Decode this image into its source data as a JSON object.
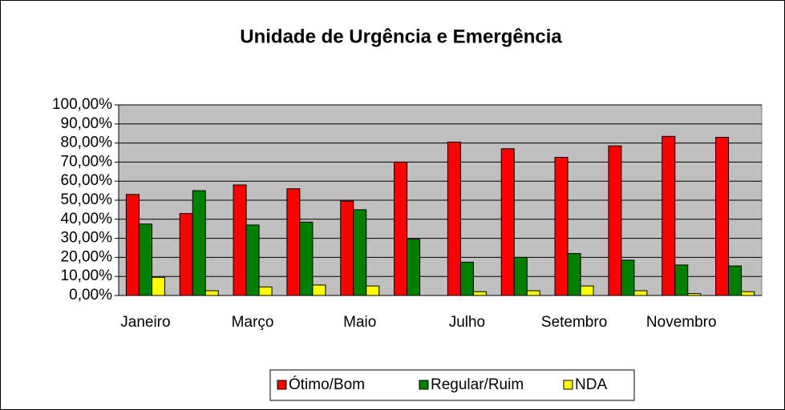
{
  "chart_data": {
    "type": "bar",
    "title": "Unidade de Urgência e Emergência",
    "categories": [
      "Janeiro",
      null,
      "Março",
      null,
      "Maio",
      null,
      "Julho",
      null,
      "Setembro",
      null,
      "Novembro",
      null
    ],
    "series": [
      {
        "name": "Ótimo/Bom",
        "color": "#ff0000",
        "values": [
          53,
          43,
          58,
          56,
          49.5,
          70,
          80.5,
          77,
          72.5,
          78.5,
          83.5,
          83
        ]
      },
      {
        "name": "Regular/Ruim",
        "color": "#008000",
        "values": [
          37.5,
          55,
          37,
          38.5,
          45,
          29.5,
          17.5,
          20,
          22,
          18.5,
          16,
          15.5
        ]
      },
      {
        "name": "NDA",
        "color": "#ffff00",
        "values": [
          9.5,
          2.5,
          4.5,
          5.5,
          5,
          0,
          2,
          2.5,
          5,
          2.5,
          1,
          2
        ]
      }
    ],
    "ylim": [
      0,
      100
    ],
    "yticks": [
      {
        "value": 0,
        "label": "0,00%"
      },
      {
        "value": 10,
        "label": "10,00%"
      },
      {
        "value": 20,
        "label": "20,00%"
      },
      {
        "value": 30,
        "label": "30,00%"
      },
      {
        "value": 40,
        "label": "40,00%"
      },
      {
        "value": 50,
        "label": "50,00%"
      },
      {
        "value": 60,
        "label": "60,00%"
      },
      {
        "value": 70,
        "label": "70,00%"
      },
      {
        "value": 80,
        "label": "80,00%"
      },
      {
        "value": 90,
        "label": "90,00%"
      },
      {
        "value": 100,
        "label": "100,00%"
      }
    ],
    "grid": true,
    "legend": "bottom"
  }
}
